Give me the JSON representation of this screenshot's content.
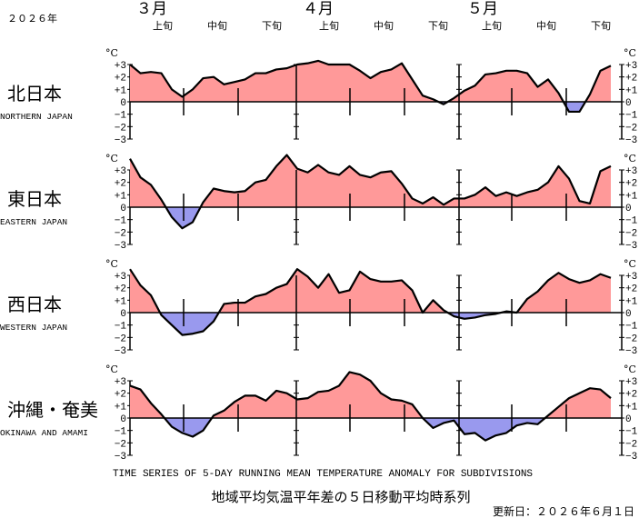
{
  "header": {
    "year": "２０２６年",
    "months": [
      "３月",
      "４月",
      "５月"
    ],
    "decades": [
      "上旬",
      "中旬",
      "下旬"
    ],
    "unit": "°C"
  },
  "footer": {
    "caption_en": "TIME SERIES OF 5-DAY RUNNING MEAN TEMPERATURE ANOMALY FOR SUBDIVISIONS",
    "caption_ja": "地域平均気温平年差の５日移動平均時系列",
    "updated": "更新日：２０２６年６月１日"
  },
  "chart_data": [
    {
      "type": "area",
      "title": "北日本",
      "subtitle": "NORTHERN JAPAN",
      "color_above": "#ff9999",
      "color_below": "#9999ee",
      "ylim": [
        -3,
        3
      ],
      "yticks": [
        {
          "value": 3,
          "label": "+3"
        },
        {
          "value": 2,
          "label": "+2"
        },
        {
          "value": 1,
          "label": "+1"
        },
        0,
        {
          "value": -1,
          "label": "−1"
        },
        {
          "value": -2,
          "label": "−2"
        },
        {
          "value": -3,
          "label": "−3"
        }
      ],
      "values": [
        3.0,
        2.3,
        2.4,
        2.3,
        1.0,
        0.4,
        1.0,
        1.9,
        2.0,
        1.4,
        1.6,
        1.8,
        2.3,
        2.3,
        2.6,
        2.7,
        3.0,
        3.1,
        3.3,
        3.0,
        3.0,
        3.0,
        2.5,
        1.9,
        2.4,
        2.6,
        3.1,
        1.8,
        0.5,
        0.2,
        -0.2,
        0.3,
        0.9,
        1.3,
        2.2,
        2.3,
        2.5,
        2.5,
        2.3,
        1.2,
        1.8,
        0.7,
        -0.8,
        -0.8,
        0.6,
        2.5,
        2.9
      ]
    },
    {
      "type": "area",
      "title": "東日本",
      "subtitle": "EASTERN JAPAN",
      "color_above": "#ff9999",
      "color_below": "#9999ee",
      "ylim": [
        -3,
        3
      ],
      "yticks": [
        {
          "value": 3,
          "label": "+3"
        },
        {
          "value": 2,
          "label": "+2"
        },
        {
          "value": 1,
          "label": "+1"
        },
        0,
        {
          "value": -1,
          "label": "−1"
        },
        {
          "value": -2,
          "label": "−2"
        },
        {
          "value": -3,
          "label": "−3"
        }
      ],
      "values": [
        3.9,
        2.4,
        1.8,
        0.6,
        -0.8,
        -1.7,
        -1.2,
        0.4,
        1.5,
        1.3,
        1.2,
        1.3,
        2.0,
        2.2,
        3.3,
        4.2,
        3.1,
        2.8,
        3.4,
        2.8,
        2.6,
        3.3,
        2.6,
        2.4,
        2.8,
        2.9,
        1.9,
        0.7,
        0.3,
        0.8,
        0.2,
        0.7,
        0.7,
        1.0,
        1.6,
        0.9,
        1.2,
        0.9,
        1.2,
        1.4,
        2.0,
        3.3,
        2.3,
        0.5,
        0.3,
        2.9,
        3.3
      ]
    },
    {
      "type": "area",
      "title": "西日本",
      "subtitle": "WESTERN JAPAN",
      "color_above": "#ff9999",
      "color_below": "#9999ee",
      "ylim": [
        -3,
        3
      ],
      "yticks": [
        {
          "value": 3,
          "label": "+3"
        },
        {
          "value": 2,
          "label": "+2"
        },
        {
          "value": 1,
          "label": "+1"
        },
        0,
        {
          "value": -1,
          "label": "−1"
        },
        {
          "value": -2,
          "label": "−2"
        },
        {
          "value": -3,
          "label": "−3"
        }
      ],
      "values": [
        3.5,
        2.2,
        1.4,
        -0.2,
        -1.0,
        -1.8,
        -1.7,
        -1.5,
        -0.7,
        0.7,
        0.8,
        0.8,
        1.3,
        1.5,
        2.0,
        2.3,
        3.5,
        2.9,
        2.0,
        3.1,
        1.6,
        1.8,
        3.3,
        2.7,
        2.5,
        2.5,
        2.6,
        1.8,
        0.0,
        1.0,
        0.2,
        -0.3,
        -0.5,
        -0.4,
        -0.2,
        -0.1,
        0.1,
        0.0,
        1.1,
        1.7,
        2.6,
        3.2,
        2.7,
        2.4,
        2.6,
        3.1,
        2.8
      ]
    },
    {
      "type": "area",
      "title": "沖縄・奄美",
      "subtitle": "OKINAWA AND AMAMI",
      "color_above": "#ff9999",
      "color_below": "#9999ee",
      "ylim": [
        -3,
        3
      ],
      "yticks": [
        {
          "value": 3,
          "label": "+3"
        },
        {
          "value": 2,
          "label": "+2"
        },
        {
          "value": 1,
          "label": "+1"
        },
        0,
        {
          "value": -1,
          "label": "−1"
        },
        {
          "value": -2,
          "label": "−2"
        },
        {
          "value": -3,
          "label": "−3"
        }
      ],
      "values": [
        2.6,
        2.3,
        1.2,
        0.3,
        -0.7,
        -1.2,
        -1.5,
        -1.0,
        0.2,
        0.6,
        1.3,
        1.8,
        1.8,
        1.4,
        2.2,
        2.0,
        1.5,
        1.6,
        2.1,
        2.2,
        2.6,
        3.7,
        3.5,
        3.0,
        2.0,
        1.5,
        1.4,
        1.1,
        0.0,
        -0.8,
        -0.4,
        -0.2,
        -1.3,
        -1.2,
        -1.8,
        -1.4,
        -1.2,
        -0.6,
        -0.4,
        -0.5,
        0.2,
        0.9,
        1.6,
        2.0,
        2.4,
        2.3,
        1.6
      ]
    }
  ]
}
